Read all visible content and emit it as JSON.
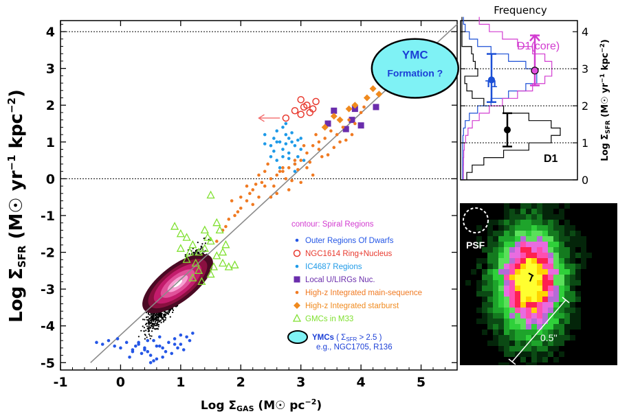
{
  "chart_data": [
    {
      "type": "scatter",
      "xlabel": {
        "pre": "Log Σ",
        "sub": "GAS",
        "post": " (M☉ pc",
        "sup": "−2",
        "end": ")"
      },
      "ylabel": {
        "pre": "Log Σ",
        "sub": "SFR",
        "post": " (M☉ yr",
        "sup1": "−1",
        "mid": " kpc",
        "sup2": "−2",
        "end": ")"
      },
      "xlim": [
        -1,
        5.6
      ],
      "ylim": [
        -5.2,
        4.3
      ],
      "xticks": [
        "-1",
        "0",
        "1",
        "2",
        "3",
        "4",
        "5"
      ],
      "yticks": [
        "-5",
        "-4",
        "-3",
        "-2",
        "-1",
        "0",
        "1",
        "2",
        "3",
        "4"
      ],
      "hlines": [
        4,
        0
      ],
      "fit_line": {
        "x": [
          -0.5,
          5.6
        ],
        "y": [
          -5.0,
          4.2
        ],
        "color": "#8a8a8a"
      },
      "ymc_region": {
        "label1": "YMC",
        "label2": "Formation ?",
        "cx": 4.9,
        "cy": 3.0,
        "rx": 0.72,
        "ry": 0.8,
        "fill": "#7ff2f5"
      },
      "arrow": {
        "x1": 2.72,
        "x2": 2.3,
        "y": 1.65,
        "color": "#f36b6b"
      },
      "legend_title": "contour: Spiral Regions",
      "legend_title_color": "#d23bd0",
      "series": [
        {
          "name": "Outer Regions Of Dwarfs",
          "marker": "dot",
          "color": "#2456e6",
          "x": [
            -0.4,
            -0.3,
            -0.2,
            -0.1,
            0.0,
            0.1,
            0.2,
            0.3,
            0.4,
            0.5,
            0.6,
            0.7,
            0.8,
            0.9,
            1.0,
            1.1,
            1.2,
            0.15,
            0.35,
            0.55,
            0.75,
            0.95,
            1.15,
            -0.05,
            0.25,
            0.45,
            0.65,
            0.85,
            1.05,
            0.5,
            0.6,
            0.4,
            0.7,
            0.3,
            0.9,
            0.2,
            1.0,
            0.55,
            0.45,
            0.65
          ],
          "y": [
            -4.45,
            -4.5,
            -4.4,
            -4.55,
            -4.6,
            -4.45,
            -4.7,
            -4.5,
            -4.65,
            -4.8,
            -4.55,
            -4.6,
            -4.45,
            -4.35,
            -4.5,
            -4.3,
            -4.2,
            -4.85,
            -4.75,
            -4.95,
            -4.7,
            -4.6,
            -4.4,
            -4.35,
            -4.55,
            -4.4,
            -4.3,
            -4.75,
            -4.65,
            -5.0,
            -4.9,
            -4.6,
            -4.85,
            -4.45,
            -4.5,
            -4.65,
            -4.25,
            -4.4,
            -4.7,
            -4.55
          ]
        },
        {
          "name": "NGC1614 Ring+Nucleus",
          "marker": "open-circle",
          "color": "#e8392e",
          "x": [
            2.75,
            2.9,
            3.0,
            3.05,
            3.1,
            3.2,
            3.25,
            3.0,
            3.15
          ],
          "y": [
            1.65,
            1.85,
            1.75,
            1.95,
            2.0,
            1.9,
            2.1,
            2.15,
            1.8
          ]
        },
        {
          "name": "IC4687 Regions",
          "marker": "dot",
          "color": "#1e9ae8",
          "x": [
            2.4,
            2.5,
            2.55,
            2.6,
            2.65,
            2.7,
            2.75,
            2.8,
            2.85,
            2.9,
            2.95,
            3.0,
            2.6,
            2.7,
            2.8,
            2.9,
            2.5,
            2.65,
            2.75,
            2.85,
            3.05,
            2.55,
            2.7,
            2.95,
            2.6,
            2.8,
            2.4,
            2.9,
            3.0,
            2.75
          ],
          "y": [
            1.2,
            0.9,
            1.1,
            1.3,
            1.0,
            0.8,
            1.2,
            0.7,
            1.0,
            0.9,
            0.6,
            0.8,
            0.5,
            1.4,
            1.1,
            0.4,
            0.6,
            0.3,
            0.95,
            1.25,
            0.5,
            0.75,
            0.6,
            1.05,
            1.0,
            0.55,
            0.95,
            0.2,
            1.1,
            1.5
          ]
        },
        {
          "name": "Local U/LIRGs Nuc.",
          "marker": "square",
          "color": "#6a2dac",
          "x": [
            3.45,
            3.55,
            3.75,
            3.85,
            3.9,
            4.0,
            4.25
          ],
          "y": [
            1.5,
            1.85,
            1.35,
            1.6,
            1.9,
            1.45,
            1.95
          ]
        },
        {
          "name": "High-z Integrated main-sequence",
          "marker": "dot",
          "color": "#f07a22",
          "x": [
            1.6,
            1.7,
            1.8,
            1.9,
            2.0,
            2.1,
            2.2,
            2.3,
            2.4,
            2.5,
            2.6,
            2.7,
            2.8,
            2.9,
            3.0,
            3.1,
            3.2,
            3.3,
            3.4,
            3.5,
            3.6,
            3.7,
            3.8,
            3.9,
            4.0,
            1.75,
            1.95,
            2.15,
            2.35,
            2.55,
            2.75,
            2.95,
            3.15,
            3.35,
            3.55,
            3.75,
            2.0,
            2.2,
            2.4,
            2.6,
            2.8,
            3.0,
            3.2,
            2.5,
            2.3,
            2.7,
            2.9,
            3.1,
            3.3,
            2.1,
            1.85,
            2.45,
            2.65,
            2.85,
            3.05,
            3.25,
            3.45,
            3.65,
            3.85,
            4.05,
            2.25
          ],
          "y": [
            -1.7,
            -1.4,
            -1.1,
            -1.0,
            -0.8,
            -0.6,
            -0.3,
            -0.5,
            -0.2,
            0.0,
            0.1,
            0.2,
            0.3,
            0.4,
            0.5,
            0.7,
            0.9,
            1.0,
            1.1,
            1.3,
            1.2,
            1.4,
            1.6,
            1.5,
            1.8,
            -1.3,
            -0.9,
            -0.4,
            -0.1,
            -0.2,
            0.0,
            0.25,
            0.45,
            0.6,
            0.85,
            1.05,
            -0.5,
            -0.7,
            0.2,
            -0.4,
            -0.3,
            -0.1,
            0.1,
            -0.5,
            0.1,
            0.3,
            0.5,
            0.3,
            0.8,
            -0.2,
            -0.6,
            0.4,
            0.2,
            -0.05,
            0.9,
            1.2,
            0.65,
            1.0,
            1.2,
            1.95,
            -0.15
          ]
        },
        {
          "name": "High-z Integrated starburst",
          "marker": "diamond",
          "color": "#f08a1e",
          "x": [
            3.4,
            3.55,
            3.65,
            3.8,
            3.9,
            4.1,
            4.2,
            4.3
          ],
          "y": [
            1.4,
            1.7,
            1.6,
            1.9,
            2.0,
            2.2,
            2.45,
            2.3
          ]
        },
        {
          "name": "GMCs in M33",
          "marker": "open-triangle",
          "color": "#7fe02f",
          "x": [
            0.9,
            1.0,
            1.1,
            1.2,
            1.3,
            1.4,
            1.5,
            1.6,
            1.7,
            1.8,
            1.1,
            1.3,
            1.5,
            1.7,
            1.2,
            1.4,
            1.6,
            1.0,
            1.35,
            1.55,
            1.25,
            1.45,
            1.65,
            1.15,
            1.75,
            1.9,
            1.5
          ],
          "y": [
            -1.3,
            -1.5,
            -1.6,
            -1.8,
            -2.0,
            -1.9,
            -1.7,
            -2.1,
            -2.3,
            -2.4,
            -2.2,
            -2.5,
            -2.6,
            -2.0,
            -2.7,
            -1.4,
            -1.2,
            -1.9,
            -2.8,
            -2.4,
            -2.3,
            -1.6,
            -1.4,
            -2.0,
            -1.8,
            -2.35,
            -0.45
          ]
        }
      ],
      "ymc_legend": {
        "name": "YMCs",
        "cond_pre": "( Σ",
        "cond_sub": "SFR",
        "cond_post": " > 2.5 )",
        "example": "e.g., NGC1705, R136"
      }
    },
    {
      "type": "histogram",
      "title": "Frequency",
      "ylabel": {
        "pre": "Log Σ",
        "sub": "SFR",
        "post": " (M☉ yr",
        "sup1": "−1",
        "mid": " kpc",
        "sup2": "−2",
        "end": ")"
      },
      "ylim": [
        0,
        4.3
      ],
      "yticks": [
        "0",
        "1",
        "2",
        "3",
        "4"
      ],
      "hlines": [
        1,
        2,
        3
      ],
      "labels": {
        "t1": "T1",
        "d1": "D1",
        "d1core": "D1(core)"
      },
      "errorbars": [
        {
          "y": 2.7,
          "lo": 2.1,
          "hi": 3.4,
          "color": "#1b4fd6",
          "pos": 0.55
        },
        {
          "y": 1.35,
          "lo": 0.9,
          "hi": 1.8,
          "color": "#000000",
          "pos": 0.78
        },
        {
          "y": 2.95,
          "lo": 2.55,
          "hi": 3.9,
          "color": "#d23bd0",
          "pos": 1.18
        }
      ]
    },
    {
      "type": "image",
      "psf_label": "PSF",
      "scale_label": "0.5''"
    }
  ]
}
